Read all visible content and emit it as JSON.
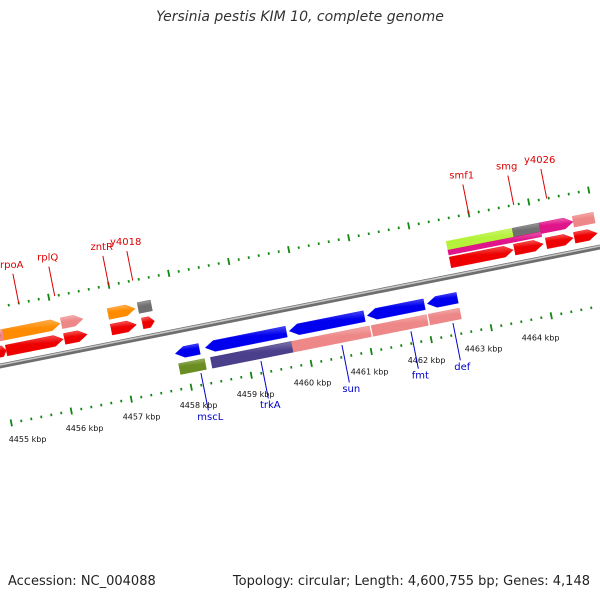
{
  "title": "Yersinia pestis KIM 10, complete genome",
  "footer": {
    "accession": "Accession: NC_004088",
    "summary": "Topology: circular; Length: 4,600,755 bp; Genes: 4,148"
  },
  "colors": {
    "backbone": "#8a8a8a",
    "red": "#ee0000",
    "pink": "#ee8888",
    "orange": "#ff8c00",
    "gray": "#707070",
    "blue": "#0000ee",
    "navy": "#4a3f8a",
    "olive": "#6b8e23",
    "magenta": "#e0158a",
    "lime": "#b5f23a",
    "tick": "#118811",
    "label_red": "#dd0000",
    "label_blue": "#0000cc"
  },
  "upper_genes": [
    {
      "name": "rpoA",
      "pos": 0.05
    },
    {
      "name": "rplQ",
      "pos": 0.11
    },
    {
      "name": "zntR",
      "pos": 0.2
    },
    {
      "name": "y4018",
      "pos": 0.24
    },
    {
      "name": "smf1",
      "pos": 0.8
    },
    {
      "name": "smg",
      "pos": 0.875
    },
    {
      "name": "y4026",
      "pos": 0.93
    }
  ],
  "lower_genes": [
    {
      "name": "mscL",
      "pos": 0.32
    },
    {
      "name": "trkA",
      "pos": 0.42
    },
    {
      "name": "sun",
      "pos": 0.555
    },
    {
      "name": "fmt",
      "pos": 0.67
    },
    {
      "name": "def",
      "pos": 0.74
    }
  ],
  "ticks": [
    {
      "label": "4455 kbp",
      "pos": 0.02
    },
    {
      "label": "4456 kbp",
      "pos": 0.115
    },
    {
      "label": "4457 kbp",
      "pos": 0.21
    },
    {
      "label": "4458 kbp",
      "pos": 0.305
    },
    {
      "label": "4459 kbp",
      "pos": 0.4
    },
    {
      "label": "4460 kbp",
      "pos": 0.495
    },
    {
      "label": "4461 kbp",
      "pos": 0.59
    },
    {
      "label": "4462 kbp",
      "pos": 0.685
    },
    {
      "label": "4463 kbp",
      "pos": 0.78
    },
    {
      "label": "4464 kbp",
      "pos": 0.875
    }
  ],
  "features": [
    {
      "lane": "u1",
      "from": 0.0,
      "to": 0.11,
      "color": "orange",
      "dir": "fwd"
    },
    {
      "lane": "u1",
      "from": 0.112,
      "to": 0.148,
      "color": "pink",
      "dir": "fwd"
    },
    {
      "lane": "u1",
      "from": 0.19,
      "to": 0.235,
      "color": "orange",
      "dir": "fwd"
    },
    {
      "lane": "u1",
      "from": 0.24,
      "to": 0.262,
      "color": "gray",
      "dir": "none"
    },
    {
      "lane": "u1",
      "from": 0.755,
      "to": 0.865,
      "color": "lime",
      "dir": "none"
    },
    {
      "lane": "u1",
      "from": 0.865,
      "to": 0.91,
      "color": "gray",
      "dir": "none"
    },
    {
      "lane": "u1",
      "from": 0.91,
      "to": 0.965,
      "color": "magenta",
      "dir": "fwd"
    },
    {
      "lane": "u1",
      "from": 0.965,
      "to": 1.0,
      "color": "pink",
      "dir": "none"
    },
    {
      "lane": "u1b",
      "from": 0.755,
      "to": 0.91,
      "color": "magenta",
      "dir": "none"
    },
    {
      "lane": "u0",
      "from": 0.0,
      "to": 0.015,
      "color": "pink",
      "dir": "none"
    },
    {
      "lane": "u0",
      "from": 0.0,
      "to": 0.01,
      "color": "red",
      "dir": "fwd"
    },
    {
      "lane": "u2",
      "from": 0.0,
      "to": 0.015,
      "color": "red",
      "dir": "fwd"
    },
    {
      "lane": "u2",
      "from": 0.015,
      "to": 0.11,
      "color": "red",
      "dir": "fwd"
    },
    {
      "lane": "u2",
      "from": 0.112,
      "to": 0.15,
      "color": "red",
      "dir": "fwd"
    },
    {
      "lane": "u2",
      "from": 0.19,
      "to": 0.232,
      "color": "red",
      "dir": "fwd"
    },
    {
      "lane": "u2",
      "from": 0.242,
      "to": 0.262,
      "color": "red",
      "dir": "fwd"
    },
    {
      "lane": "u2",
      "from": 0.755,
      "to": 0.86,
      "color": "red",
      "dir": "fwd"
    },
    {
      "lane": "u2",
      "from": 0.862,
      "to": 0.91,
      "color": "red",
      "dir": "fwd"
    },
    {
      "lane": "u2",
      "from": 0.915,
      "to": 0.96,
      "color": "red",
      "dir": "fwd"
    },
    {
      "lane": "u2",
      "from": 0.962,
      "to": 1.0,
      "color": "red",
      "dir": "fwd"
    },
    {
      "lane": "l1",
      "from": 0.285,
      "to": 0.325,
      "color": "blue",
      "dir": "rev"
    },
    {
      "lane": "l1",
      "from": 0.335,
      "to": 0.47,
      "color": "blue",
      "dir": "rev"
    },
    {
      "lane": "l1",
      "from": 0.475,
      "to": 0.6,
      "color": "blue",
      "dir": "rev"
    },
    {
      "lane": "l1",
      "from": 0.605,
      "to": 0.7,
      "color": "blue",
      "dir": "rev"
    },
    {
      "lane": "l1",
      "from": 0.705,
      "to": 0.755,
      "color": "blue",
      "dir": "rev"
    },
    {
      "lane": "l2",
      "from": 0.287,
      "to": 0.33,
      "color": "olive",
      "dir": "none"
    },
    {
      "lane": "l2",
      "from": 0.34,
      "to": 0.475,
      "color": "navy",
      "dir": "none"
    },
    {
      "lane": "l2",
      "from": 0.475,
      "to": 0.605,
      "color": "pink",
      "dir": "none"
    },
    {
      "lane": "l2",
      "from": 0.608,
      "to": 0.7,
      "color": "pink",
      "dir": "none"
    },
    {
      "lane": "l2",
      "from": 0.703,
      "to": 0.755,
      "color": "pink",
      "dir": "none"
    }
  ]
}
